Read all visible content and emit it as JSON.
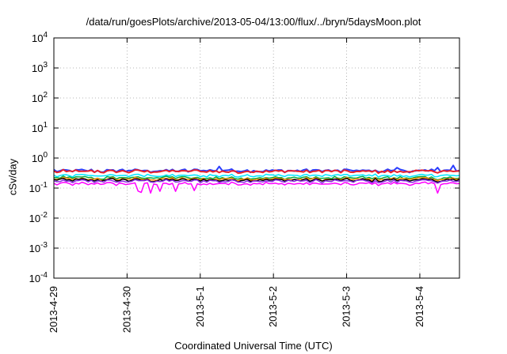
{
  "chart_data": {
    "type": "line",
    "title": "/data/run/goesPlots/archive/2013-05-04/13:00/flux/../bryn/5daysMoon.plot",
    "xlabel": "Coordinated Universal Time (UTC)",
    "ylabel": "cSv/day",
    "yscale": "log",
    "ylim": [
      0.0001,
      10000
    ],
    "y_ticks": [
      {
        "base": "10",
        "exp": "-4"
      },
      {
        "base": "10",
        "exp": "-3"
      },
      {
        "base": "10",
        "exp": "-2"
      },
      {
        "base": "10",
        "exp": "-1"
      },
      {
        "base": "10",
        "exp": "0"
      },
      {
        "base": "10",
        "exp": "1"
      },
      {
        "base": "10",
        "exp": "2"
      },
      {
        "base": "10",
        "exp": "3"
      },
      {
        "base": "10",
        "exp": "4"
      }
    ],
    "x_ticks": [
      "2013-4-29",
      "2013-4-30",
      "2013-5-1",
      "2013-5-2",
      "2013-5-3",
      "2013-5-4"
    ],
    "xlim": [
      "2013-04-29",
      "2013-05-04 13:00"
    ],
    "grid": true,
    "series": [
      {
        "color": "#2a3cff",
        "level": 0.38
      },
      {
        "color": "#e8202a",
        "level": 0.36
      },
      {
        "color": "#00e5ff",
        "level": 0.26
      },
      {
        "color": "#00aa44",
        "level": 0.22
      },
      {
        "color": "#ff8800",
        "level": 0.2
      },
      {
        "color": "#000000",
        "level": 0.185
      },
      {
        "color": "#8a2be2",
        "level": 0.17
      },
      {
        "color": "#ff00ff",
        "level": 0.14
      }
    ]
  }
}
